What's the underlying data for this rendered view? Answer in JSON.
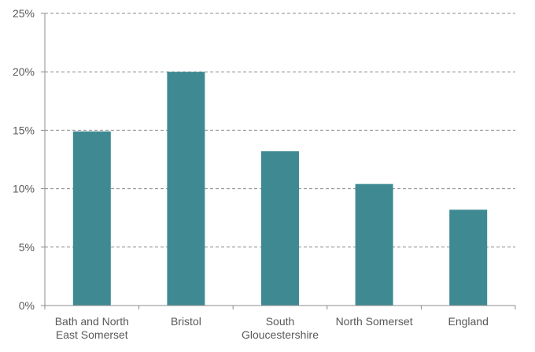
{
  "chart_data": {
    "type": "bar",
    "categories": [
      [
        "Bath and North",
        "East Somerset"
      ],
      [
        "Bristol"
      ],
      [
        "South",
        "Gloucestershire"
      ],
      [
        "North Somerset"
      ],
      [
        "England"
      ]
    ],
    "values": [
      14.9,
      20.0,
      13.2,
      10.4,
      8.2
    ],
    "ylim": [
      0,
      25
    ],
    "yticks": [
      "0%",
      "5%",
      "10%",
      "15%",
      "20%",
      "25%"
    ],
    "bar_color": "#3f8a92",
    "grid": true,
    "grid_style": "dashed"
  }
}
